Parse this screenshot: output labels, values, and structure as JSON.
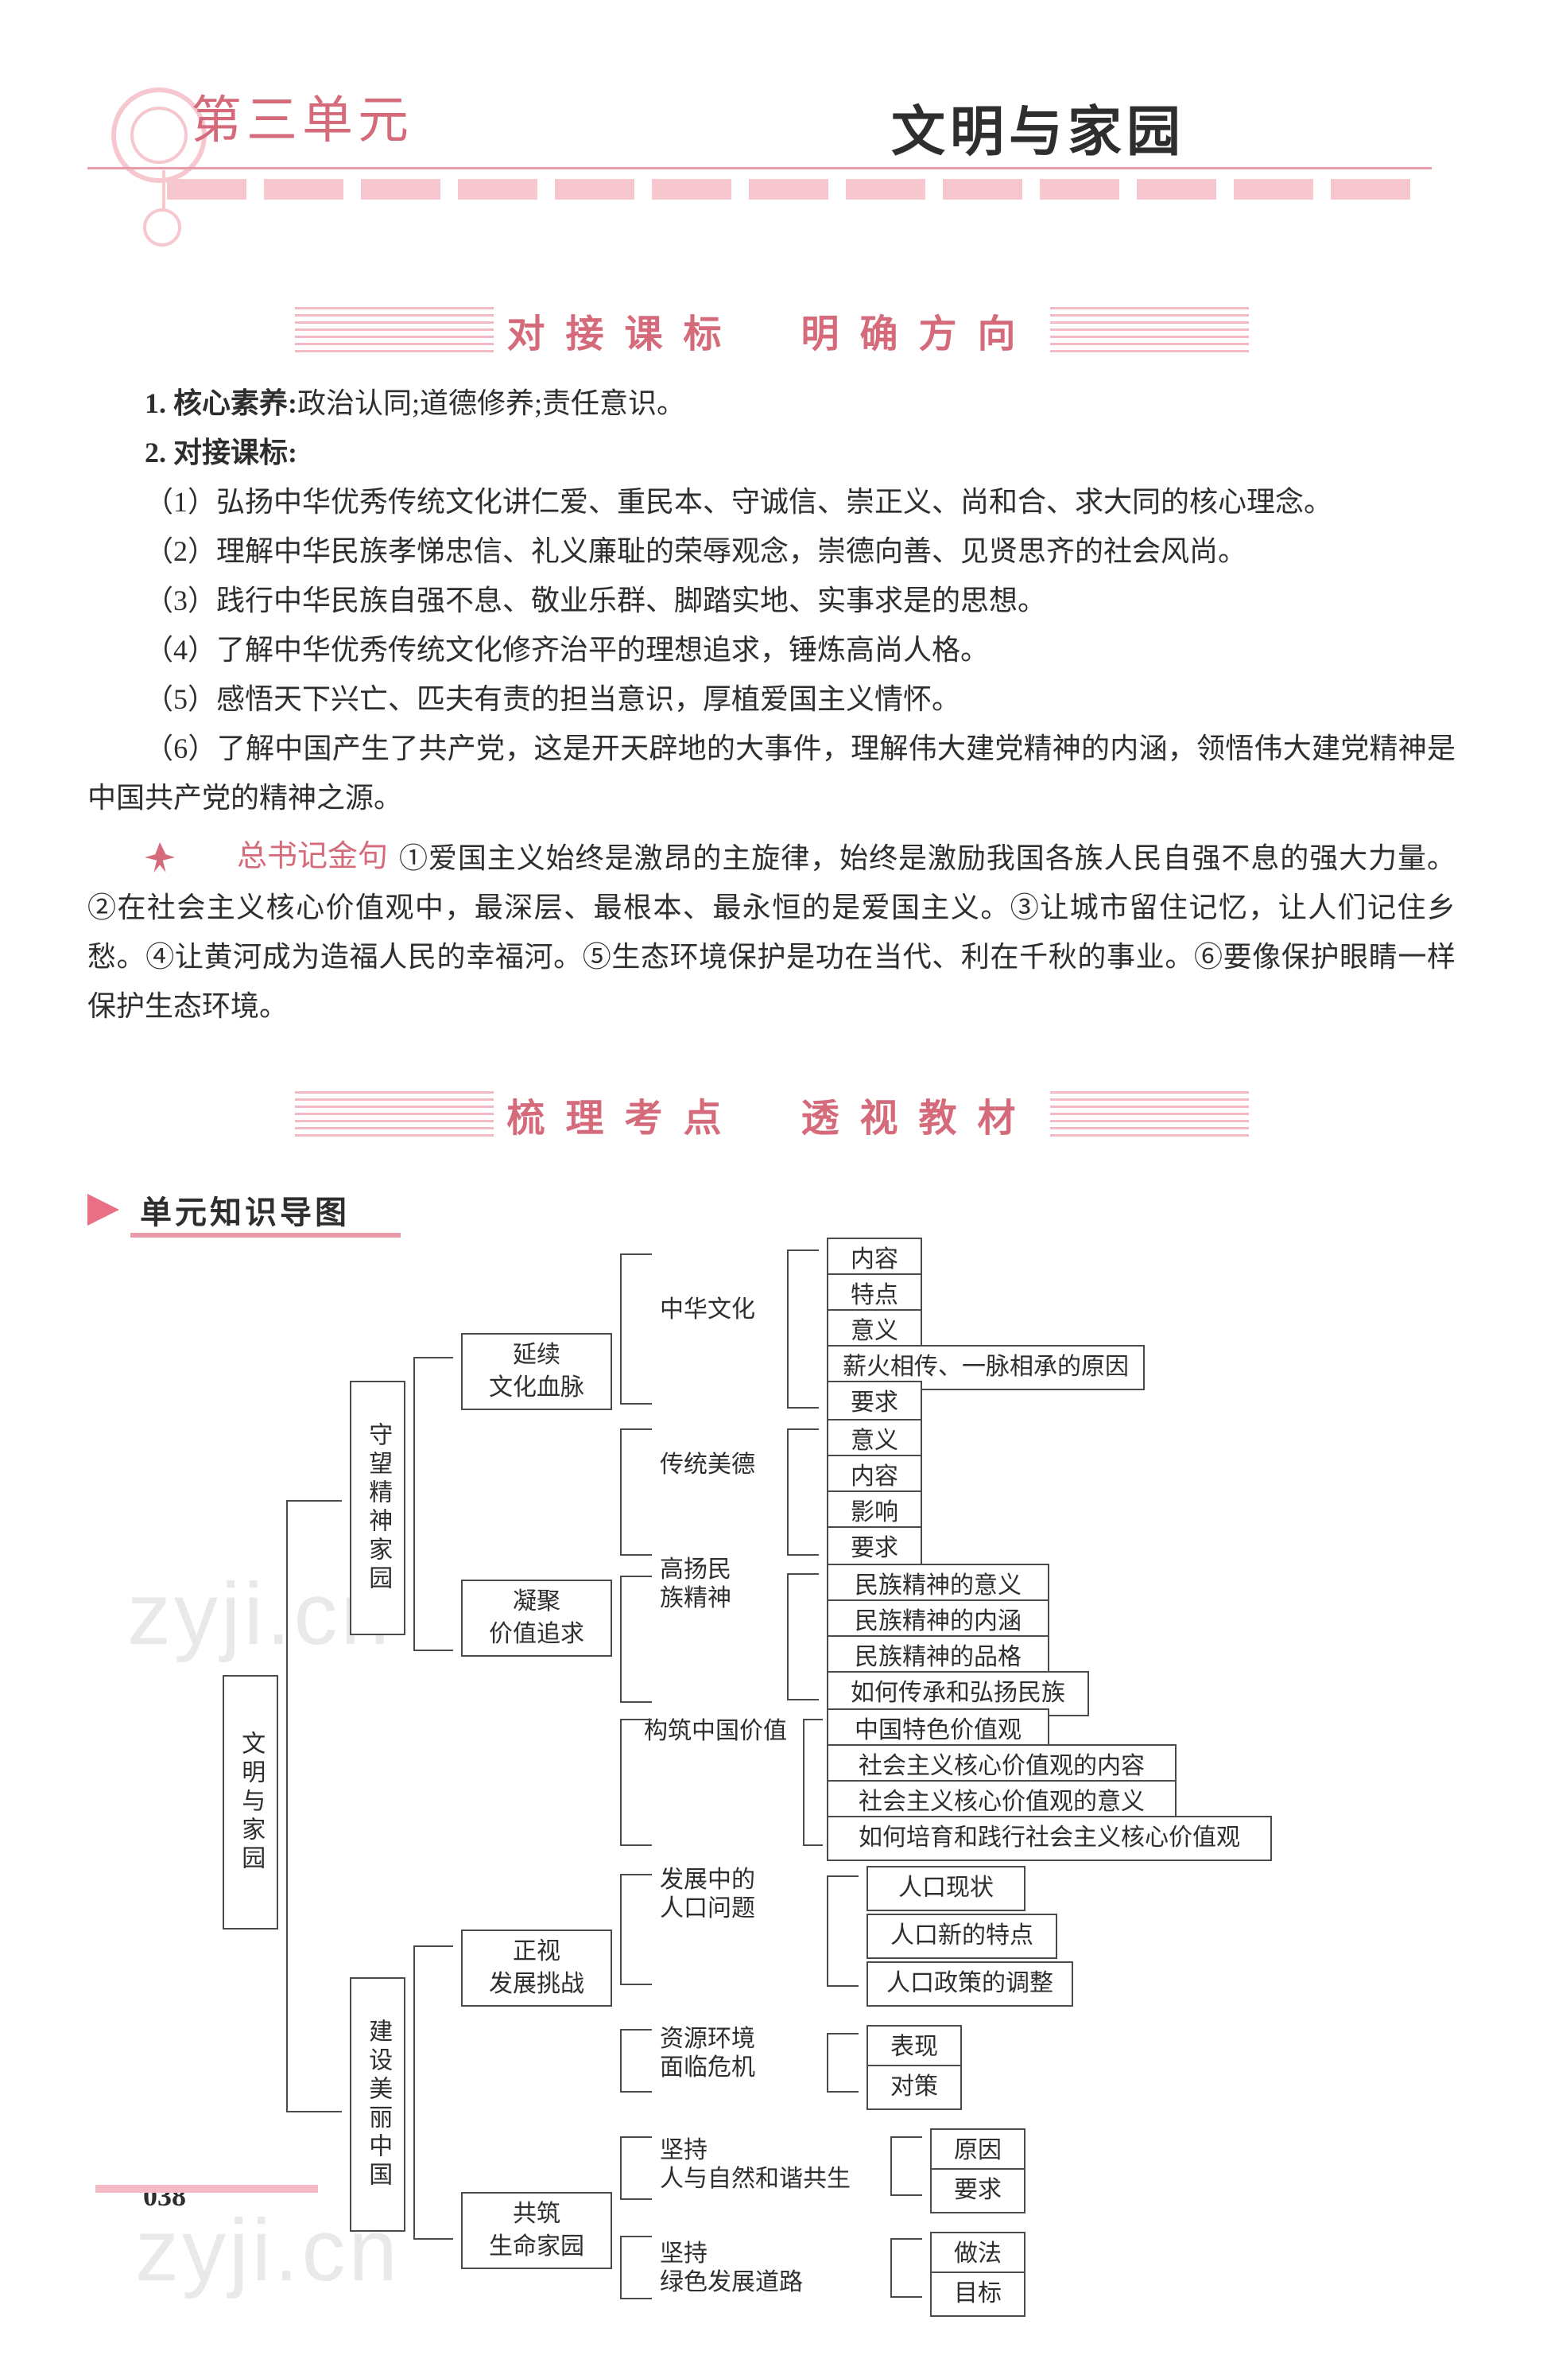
{
  "colors": {
    "accent": "#d46a7a",
    "accent_light": "#f6c7cf",
    "accent_mid": "#e89aa8",
    "text": "#2e2e2e",
    "border": "#4a4a4a",
    "watermark": "#cfcfcf",
    "white": "#ffffff"
  },
  "header": {
    "unit_label": "第三单元",
    "chapter_title": "文明与家园"
  },
  "section1": {
    "banner": "对接课标　明确方向"
  },
  "para_title_1": "1. 核心素养:",
  "para_text_1": "政治认同;道德修养;责任意识。",
  "para_title_2": "2. 对接课标:",
  "stds": [
    "（1）弘扬中华优秀传统文化讲仁爱、重民本、守诚信、崇正义、尚和合、求大同的核心理念。",
    "（2）理解中华民族孝悌忠信、礼义廉耻的荣辱观念，崇德向善、见贤思齐的社会风尚。",
    "（3）践行中华民族自强不息、敬业乐群、脚踏实地、实事求是的思想。",
    "（4）了解中华优秀传统文化修齐治平的理想追求，锤炼高尚人格。",
    "（5）感悟天下兴亡、匹夫有责的担当意识，厚植爱国主义情怀。",
    "（6）了解中国产生了共产党，这是开天辟地的大事件，理解伟大建党精神的内涵，领悟伟大建党精神是中国共产党的精神之源。"
  ],
  "quote_tag": "总书记金句",
  "quote_body": "①爱国主义始终是激昂的主旋律，始终是激励我国各族人民自强不息的强大力量。②在社会主义核心价值观中，最深层、最根本、最永恒的是爱国主义。③让城市留住记忆，让人们记住乡愁。④让黄河成为造福人民的幸福河。⑤生态环境保护是功在当代、利在千秋的事业。⑥要像保护眼睛一样保护生态环境。",
  "section2": {
    "banner": "梳理考点　透视教材",
    "sub": "单元知识导图"
  },
  "page_number": "038",
  "watermark_a": "zyji.cn",
  "watermark_b": "zyji.cn",
  "diagram": {
    "root": "文明与家园",
    "b1": {
      "title": "守望精神家园",
      "c1": {
        "title": "延续\n文化血脉",
        "g1": {
          "label": "中华文化",
          "leaves": [
            "内容",
            "特点",
            "意义",
            "薪火相传、一脉相承的原因",
            "要求"
          ]
        },
        "g2": {
          "label": "传统美德",
          "leaves": [
            "意义",
            "内容",
            "影响",
            "要求"
          ]
        }
      },
      "c2": {
        "title": "凝聚\n价值追求",
        "g1": {
          "label": "高扬民\n族精神",
          "leaves": [
            "民族精神的意义",
            "民族精神的内涵",
            "民族精神的品格",
            "如何传承和弘扬民族"
          ]
        },
        "g2": {
          "label": "构筑中国价值",
          "leaves": [
            "中国特色价值观",
            "社会主义核心价值观的内容",
            "社会主义核心价值观的意义",
            "如何培育和践行社会主义核心价值观"
          ]
        }
      }
    },
    "b2": {
      "title": "建设美丽中国",
      "c1": {
        "title": "正视\n发展挑战",
        "g1": {
          "label": "发展中的\n人口问题",
          "leaves": [
            "人口现状",
            "人口新的特点",
            "人口政策的调整"
          ]
        },
        "g2": {
          "label": "资源环境\n面临危机",
          "leaves": [
            "表现",
            "对策"
          ]
        }
      },
      "c2": {
        "title": "共筑\n生命家园",
        "g1": {
          "label": "坚持\n人与自然和谐共生",
          "leaves": [
            "原因",
            "要求"
          ]
        },
        "g2": {
          "label": "坚持\n绿色发展道路",
          "leaves": [
            "做法",
            "目标"
          ]
        }
      }
    }
  }
}
